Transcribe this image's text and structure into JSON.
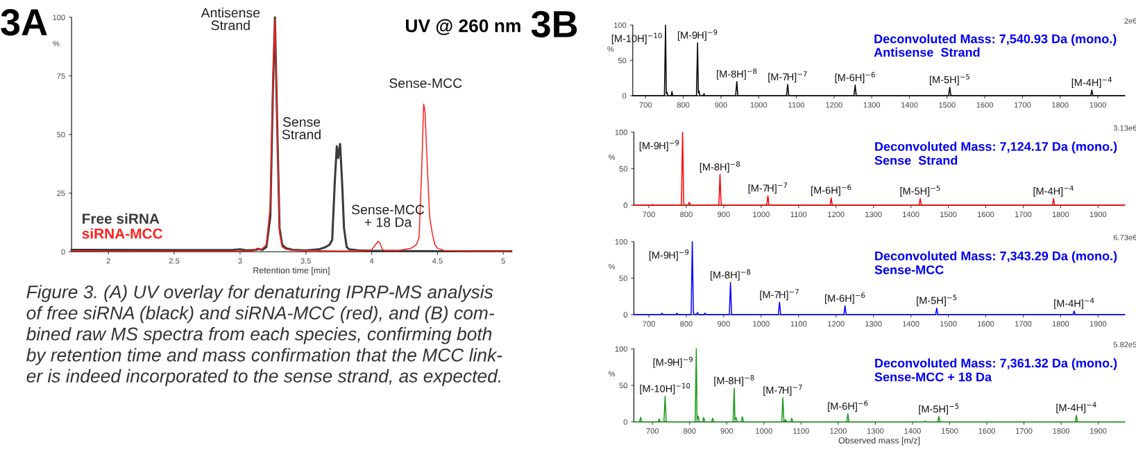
{
  "chart_data": [
    {
      "type": "line",
      "xlabel": "Retention time [min]",
      "ylabel": "%",
      "xlim": [
        1.72,
        5.06
      ],
      "ylim": [
        0,
        100
      ],
      "xticks": [
        2,
        2.5,
        3,
        3.5,
        4,
        4.5,
        5
      ],
      "yticks": [
        0,
        25,
        50,
        75,
        100
      ],
      "legend": "bottom left",
      "series": [
        {
          "name": "Free siRNA",
          "color": "#3a3a3a",
          "x": [
            1.72,
            2.0,
            2.5,
            2.95,
            3.0,
            3.05,
            3.12,
            3.14,
            3.17,
            3.2,
            3.23,
            3.25,
            3.265,
            3.28,
            3.3,
            3.32,
            3.35,
            3.4,
            3.5,
            3.6,
            3.65,
            3.68,
            3.7,
            3.72,
            3.735,
            3.745,
            3.76,
            3.775,
            3.79,
            3.81,
            3.83,
            3.9,
            4.0,
            4.3,
            4.5,
            4.8,
            5.06
          ],
          "values": [
            0.8,
            0.8,
            0.7,
            0.8,
            1.0,
            0.6,
            0.8,
            1.2,
            0.8,
            2,
            15,
            70,
            100,
            60,
            10,
            3,
            1.5,
            0.8,
            0.6,
            1,
            2,
            3,
            5,
            30,
            45,
            40,
            46,
            30,
            10,
            2,
            1,
            0.6,
            0.4,
            0.3,
            0.2,
            0.2,
            0.2
          ]
        },
        {
          "name": "siRNA-MCC",
          "color": "#ff2020",
          "x": [
            1.72,
            2.5,
            3.0,
            3.1,
            3.13,
            3.16,
            3.2,
            3.23,
            3.25,
            3.265,
            3.28,
            3.3,
            3.32,
            3.35,
            3.4,
            3.6,
            3.8,
            3.95,
            4.0,
            4.03,
            4.05,
            4.065,
            4.08,
            4.1,
            4.2,
            4.3,
            4.34,
            4.36,
            4.38,
            4.395,
            4.405,
            4.42,
            4.44,
            4.46,
            4.48,
            4.5,
            4.55,
            4.8,
            5.0,
            5.06
          ],
          "values": [
            0.3,
            0.2,
            0.2,
            0.4,
            1.5,
            0.8,
            3,
            20,
            75,
            99,
            60,
            8,
            2,
            1,
            0.6,
            0.4,
            0.3,
            0.4,
            0.8,
            3,
            4.5,
            3.5,
            1,
            0.5,
            0.5,
            1.5,
            3,
            6,
            35,
            63,
            60,
            40,
            15,
            8,
            3,
            1.5,
            0.5,
            0.3,
            0.2,
            0.5
          ]
        }
      ],
      "annotations": [
        "3A",
        "UV @ 260 nm",
        "Figure 3. (A) UV overlay for denaturing IPRP-MS analysis\nof free siRNA (black) and siRNA-MCC (red), and (B) com-\nbined raw MS spectra from each species, confirming both\nby retention time and mass confirmation that the MCC link-\ner is indeed incorporated to the sense strand, as expected.",
        {
          "text": "Antisense\nStrand",
          "x": 3.265,
          "y": 100
        },
        {
          "text": "Sense\nStrand",
          "x": 3.76,
          "y": 46
        },
        {
          "text": "Sense-MCC",
          "x": 4.395,
          "y": 63
        },
        {
          "text": "Sense-MCC\n+ 18 Da",
          "x": 4.065,
          "y": 4.5
        }
      ]
    },
    {
      "type": "line",
      "title": "Deconvoluted Mass: 7,540.93 Da (mono.)",
      "subtitle": "Antisense  Strand",
      "ylabel": "%",
      "xlim": [
        666,
        1971
      ],
      "ylim": [
        0,
        100
      ],
      "xticks": [
        700,
        800,
        900,
        1000,
        1100,
        1200,
        1300,
        1400,
        1500,
        1600,
        1700,
        1800,
        1900
      ],
      "yticks": [
        0,
        50,
        100
      ],
      "series": [
        {
          "color": "#000000",
          "x": [
            666,
            750,
            753,
            755,
            757,
            759,
            768,
            770,
            772,
            835,
            838,
            840,
            842,
            844,
            853,
            855,
            857,
            939,
            942,
            945,
            1074,
            1077,
            1080,
            1253,
            1256,
            1259,
            1504,
            1507,
            1510,
            1881,
            1884,
            1887,
            1971
          ],
          "values": [
            0,
            0,
            100,
            3,
            5,
            0,
            0,
            6,
            0,
            0,
            75,
            4,
            7,
            0,
            0,
            3,
            0,
            0,
            20,
            0,
            0,
            16,
            0,
            0,
            15,
            0,
            0,
            12,
            0,
            0,
            8,
            0,
            0
          ]
        }
      ],
      "annotations": [
        "3B",
        "2e6",
        {
          "text": "[M-10H]$^{−10}$",
          "x": 753,
          "y": 100
        },
        {
          "text": "[M-9H]$^{−9}$",
          "x": 838,
          "y": 75
        },
        {
          "text": "[M-8H]$^{−8}$",
          "x": 942,
          "y": 20
        },
        {
          "text": "[M-7H]$^{−7}$",
          "x": 1077,
          "y": 16
        },
        {
          "text": "[M-6H]$^{−6}$",
          "x": 1256,
          "y": 15
        },
        {
          "text": "[M-5H]$^{−5}$",
          "x": 1507,
          "y": 12
        },
        {
          "text": "[M-4H]$^{−4}$",
          "x": 1884,
          "y": 8
        }
      ]
    },
    {
      "type": "line",
      "title": "Deconvoluted Mass: 7,124.17 Da (mono.)",
      "subtitle": "Sense  Strand",
      "ylabel": "%",
      "xlim": [
        660,
        1971
      ],
      "ylim": [
        0,
        100
      ],
      "xticks": [
        700,
        800,
        900,
        1000,
        1100,
        1200,
        1300,
        1400,
        1500,
        1600,
        1700,
        1800,
        1900
      ],
      "yticks": [
        0,
        50,
        100
      ],
      "series": [
        {
          "color": "#ff0000",
          "x": [
            660,
            707,
            710,
            713,
            787,
            790,
            793,
            795,
            805,
            808,
            811,
            887,
            890,
            893,
            896,
            1015,
            1018,
            1021,
            1184,
            1187,
            1190,
            1422,
            1425,
            1428,
            1778,
            1781,
            1784,
            1971
          ],
          "values": [
            0,
            0,
            1,
            0,
            0,
            100,
            3,
            0,
            0,
            4,
            0,
            0,
            42,
            2,
            0,
            0,
            13,
            0,
            0,
            10,
            0,
            0,
            9,
            0,
            0,
            9,
            0,
            0
          ]
        }
      ],
      "annotations": [
        "3.13e6",
        {
          "text": "[M-9H]$^{−9}$",
          "x": 790,
          "y": 100
        },
        {
          "text": "[M-8H]$^{−8}$",
          "x": 890,
          "y": 42
        },
        {
          "text": "[M-7H]$^{−7}$",
          "x": 1018,
          "y": 13
        },
        {
          "text": "[M-6H]$^{−6}$",
          "x": 1187,
          "y": 10
        },
        {
          "text": "[M-5H]$^{−5}$",
          "x": 1425,
          "y": 9
        },
        {
          "text": "[M-4H]$^{−4}$",
          "x": 1781,
          "y": 9
        }
      ]
    },
    {
      "type": "line",
      "title": "Deconvoluted Mass: 7,343.29 Da (mono.)",
      "subtitle": "Sense-MCC",
      "ylabel": "%",
      "xlim": [
        660,
        1971
      ],
      "ylim": [
        0,
        100
      ],
      "xticks": [
        700,
        800,
        900,
        1000,
        1100,
        1200,
        1300,
        1400,
        1500,
        1600,
        1700,
        1800,
        1900
      ],
      "yticks": [
        0,
        50,
        100
      ],
      "series": [
        {
          "color": "#0000ff",
          "x": [
            660,
            732,
            735,
            738,
            772,
            775,
            778,
            813,
            816,
            819,
            822,
            827,
            830,
            833,
            847,
            850,
            853,
            915,
            918,
            921,
            1046,
            1049,
            1052,
            1221,
            1224,
            1227,
            1466,
            1469,
            1472,
            1833,
            1836,
            1839,
            1971
          ],
          "values": [
            0,
            0,
            2,
            0,
            0,
            2,
            0,
            0,
            100,
            3,
            0,
            0,
            3,
            0,
            0,
            2,
            0,
            0,
            44,
            0,
            0,
            17,
            0,
            0,
            12,
            0,
            0,
            9,
            0,
            0,
            5,
            0,
            0
          ]
        }
      ],
      "annotations": [
        "6.73e6",
        {
          "text": "[M-9H]$^{−9}$",
          "x": 816,
          "y": 100
        },
        {
          "text": "[M-8H]$^{−8}$",
          "x": 918,
          "y": 44
        },
        {
          "text": "[M-7H]$^{−7}$",
          "x": 1049,
          "y": 17
        },
        {
          "text": "[M-6H]$^{−6}$",
          "x": 1224,
          "y": 12
        },
        {
          "text": "[M-5H]$^{−5}$",
          "x": 1469,
          "y": 9
        },
        {
          "text": "[M-4H]$^{−4}$",
          "x": 1836,
          "y": 5
        }
      ]
    },
    {
      "type": "line",
      "title": "Deconvoluted Mass: 7,361.32 Da (mono.)",
      "subtitle": "Sense-MCC + 18 Da",
      "xlabel": "Observed mass [m/z]",
      "ylabel": "%",
      "xlim": [
        650,
        1971
      ],
      "ylim": [
        0,
        100
      ],
      "xticks": [
        700,
        800,
        900,
        1000,
        1100,
        1200,
        1300,
        1400,
        1500,
        1600,
        1700,
        1800,
        1900
      ],
      "yticks": [
        0,
        50,
        100
      ],
      "series": [
        {
          "color": "#1a9a1a",
          "x": [
            650,
            665,
            668,
            671,
            715,
            718,
            721,
            731,
            734,
            737,
            815,
            818,
            820,
            823,
            826,
            835,
            838,
            841,
            859,
            862,
            865,
            917,
            920,
            922,
            925,
            928,
            939,
            942,
            945,
            1048,
            1051,
            1054,
            1056,
            1058,
            1061,
            1072,
            1075,
            1078,
            1223,
            1226,
            1229,
            1431,
            1434,
            1437,
            1468,
            1471,
            1474,
            1838,
            1841,
            1844,
            1971
          ],
          "values": [
            0,
            0,
            6,
            0,
            0,
            4,
            0,
            0,
            35,
            0,
            0,
            100,
            2,
            8,
            0,
            0,
            6,
            0,
            0,
            5,
            0,
            0,
            46,
            2,
            6,
            0,
            0,
            7,
            0,
            0,
            33,
            0,
            0,
            3,
            0,
            0,
            5,
            0,
            0,
            11,
            0,
            0,
            1,
            0,
            0,
            7,
            0,
            0,
            9,
            0,
            0
          ]
        }
      ],
      "annotations": [
        "5.82e5",
        {
          "text": "[M-10H]$^{−10}$",
          "x": 734,
          "y": 35
        },
        {
          "text": "[M-9H]$^{−9}$",
          "x": 818,
          "y": 100
        },
        {
          "text": "[M-8H]$^{−8}$",
          "x": 920,
          "y": 46
        },
        {
          "text": "[M-7H]$^{−7}$",
          "x": 1051,
          "y": 33
        },
        {
          "text": "[M-6H]$^{−6}$",
          "x": 1226,
          "y": 11
        },
        {
          "text": "[M-5H]$^{−5}$",
          "x": 1471,
          "y": 7
        },
        {
          "text": "[M-4H]$^{−4}$",
          "x": 1841,
          "y": 9
        }
      ]
    }
  ]
}
